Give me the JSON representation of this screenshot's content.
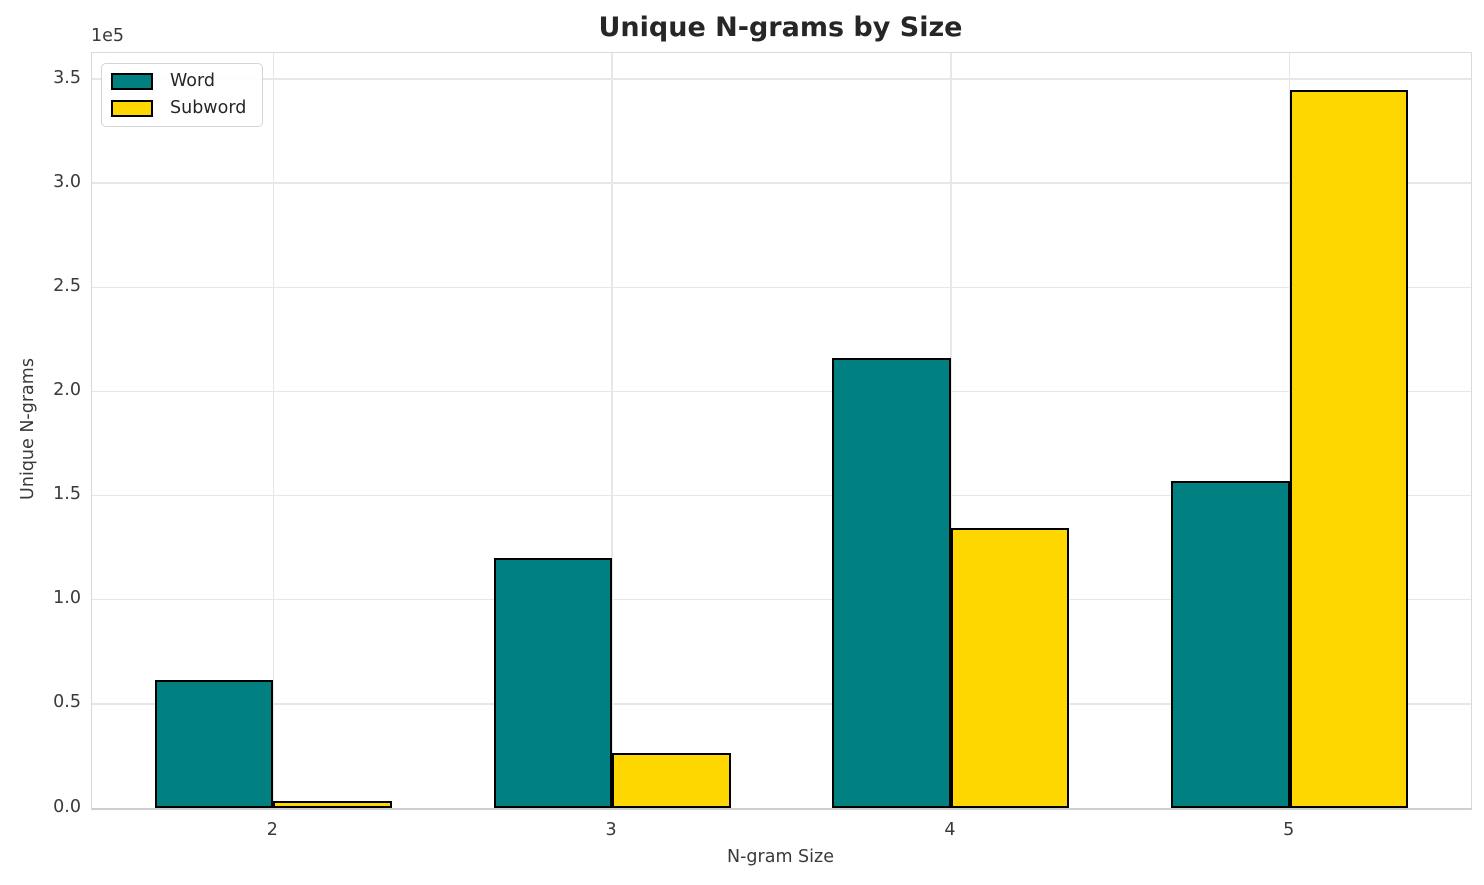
{
  "chart_data": {
    "type": "bar",
    "title": "Unique N-grams by Size",
    "xlabel": "N-gram Size",
    "ylabel": "Unique N-grams",
    "y_offset_text": "1e5",
    "categories": [
      "2",
      "3",
      "4",
      "5"
    ],
    "category_positions": [
      2,
      3,
      4,
      5
    ],
    "series": [
      {
        "name": "Word",
        "color": "#008080",
        "values": [
          61500,
          120000,
          216000,
          157000
        ]
      },
      {
        "name": "Subword",
        "color": "#FFD700",
        "values": [
          3200,
          26500,
          134500,
          344500
        ]
      }
    ],
    "edge_color": "#000000",
    "bar_width_data_units": 0.35,
    "xlim": [
      1.465,
      5.535
    ],
    "ylim": [
      0,
      362500
    ],
    "yticks": {
      "values": [
        0,
        50000,
        100000,
        150000,
        200000,
        250000,
        300000,
        350000
      ],
      "labels": [
        "0.0",
        "0.5",
        "1.0",
        "1.5",
        "2.0",
        "2.5",
        "3.0",
        "3.5"
      ]
    },
    "grid": true,
    "legend_position": "upper left"
  }
}
